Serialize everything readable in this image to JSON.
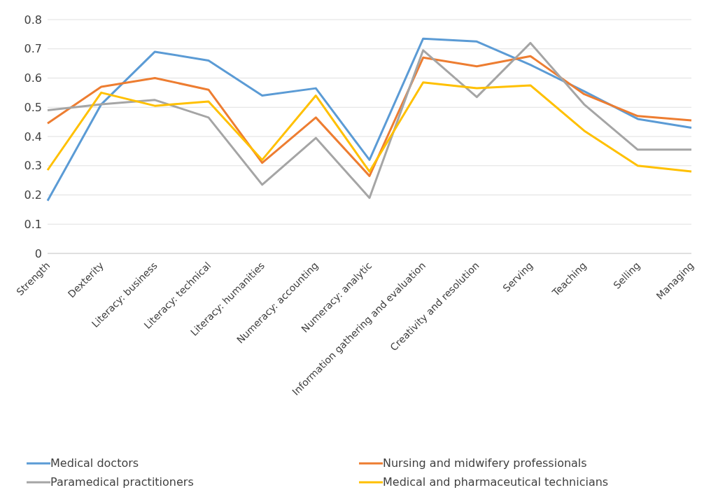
{
  "chart_data": {
    "type": "line",
    "categories": [
      "Strength",
      "Dexterity",
      "Literacy: business",
      "Literacy: technical",
      "Literacy: humanities",
      "Numeracy: accounting",
      "Numeracy: analytic",
      "Information gathering and evaluation",
      "Creativity and resolution",
      "Serving",
      "Teaching",
      "Selling",
      "Managing"
    ],
    "series": [
      {
        "name": "Medical doctors",
        "color": "#5b9bd5",
        "values": [
          0.18,
          0.51,
          0.69,
          0.66,
          0.54,
          0.565,
          0.32,
          0.735,
          0.725,
          0.645,
          0.555,
          0.46,
          0.43
        ]
      },
      {
        "name": "Nursing and midwifery professionals",
        "color": "#ed7d31",
        "values": [
          0.445,
          0.57,
          0.6,
          0.56,
          0.31,
          0.465,
          0.265,
          0.67,
          0.64,
          0.675,
          0.545,
          0.47,
          0.455
        ]
      },
      {
        "name": "Paramedical practitioners",
        "color": "#a5a5a5",
        "values": [
          0.49,
          0.51,
          0.525,
          0.465,
          0.235,
          0.395,
          0.19,
          0.695,
          0.535,
          0.72,
          0.51,
          0.355,
          0.355
        ]
      },
      {
        "name": "Medical and pharmaceutical technicians",
        "color": "#ffc000",
        "values": [
          0.285,
          0.55,
          0.505,
          0.52,
          0.32,
          0.54,
          0.28,
          0.585,
          0.565,
          0.575,
          0.42,
          0.3,
          0.28
        ]
      }
    ],
    "ylim": [
      0,
      0.8
    ],
    "yticks": [
      0,
      0.1,
      0.2,
      0.3,
      0.4,
      0.5,
      0.6,
      0.7,
      0.8
    ],
    "grid": "y",
    "legend": "bottom",
    "marker": "none",
    "line_style": "solid"
  }
}
